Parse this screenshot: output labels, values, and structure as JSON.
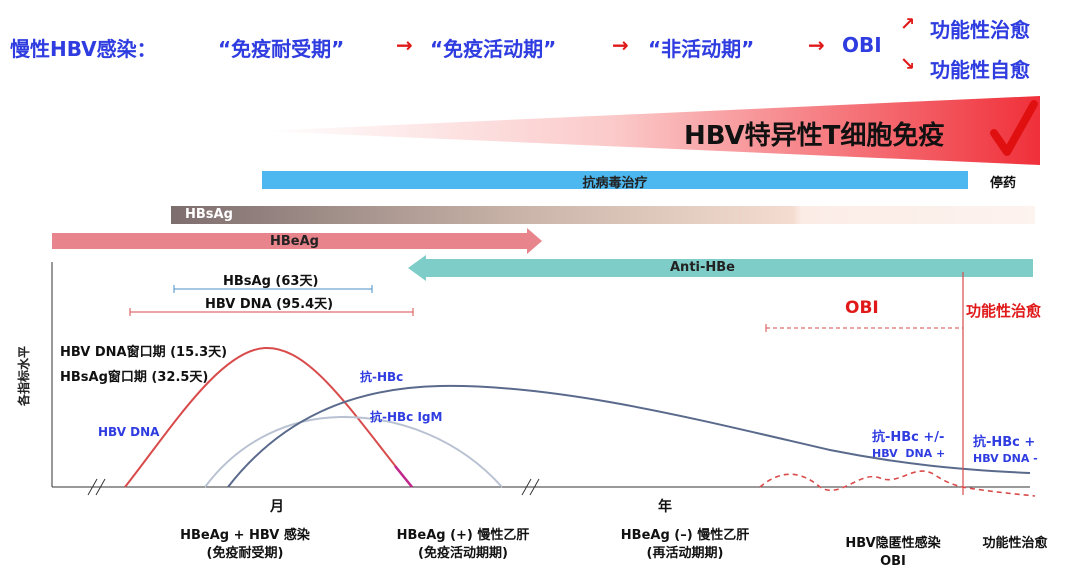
{
  "header": {
    "prefix": "慢性HBV感染：",
    "phase1": "“免疫耐受期”",
    "phase2": "“免疫活动期”",
    "phase3": "“非活动期”",
    "phase4": "OBI",
    "arrow": "→",
    "outcome1": "功能性治愈",
    "outcome2": "功能性自愈",
    "branch_arrow": "↗"
  },
  "immunity": {
    "label": "HBV特异性T细胞免疫",
    "check_icon": "checkmark-icon",
    "colors": {
      "start": "#ffffff",
      "end": "#f0303a",
      "check": "#e01010"
    }
  },
  "bars": {
    "antiviral": {
      "label": "抗病毒治疗",
      "color": "#4db8ef"
    },
    "stop_drug": "停药",
    "hbsag": {
      "label": "HBsAg"
    },
    "hbeag": {
      "label": "HBeAg",
      "color": "#e8848c"
    },
    "anti_hbe": {
      "label": "Anti-HBe",
      "color": "#7ecdc8"
    }
  },
  "periods": {
    "hbsag": "HBsAg (63天)",
    "hbv_dna": "HBV DNA (95.4天)"
  },
  "window": {
    "dna": "HBV DNA窗口期 (15.3天)",
    "hbsag": "HBsAg窗口期 (32.5天)"
  },
  "y_axis_label": "各指标水平",
  "curves": {
    "hbv_dna": "HBV DNA",
    "anti_hbc": "抗-HBc",
    "anti_hbc_igm": "抗-HBc IgM"
  },
  "obi": {
    "label": "OBI",
    "functional_cure": "功能性治愈",
    "left_line1": "抗-HBc +/-",
    "left_line2": "HBV  DNA +",
    "right_line1": "抗-HBc +",
    "right_line2": "HBV DNA -"
  },
  "time_axis": {
    "month": "月",
    "year": "年"
  },
  "stages": [
    {
      "line1": "HBeAg + HBV 感染",
      "line2": "(免疫耐受期)"
    },
    {
      "line1": "HBeAg (+) 慢性乙肝",
      "line2": "(免疫活动期期)"
    },
    {
      "line1": "HBeAg (–) 慢性乙肝",
      "line2": "(再活动期期)"
    },
    {
      "line1": "HBV隐匿性感染",
      "line2": "OBI"
    },
    {
      "line1": "功能性治愈",
      "line2": ""
    }
  ],
  "colors": {
    "title_blue": "#2f3ce0",
    "red": "#e01a1a",
    "dna_curve": "#d94b4b",
    "hbc_curve": "#5a6a8c",
    "igm_curve": "#b9c2d2"
  }
}
